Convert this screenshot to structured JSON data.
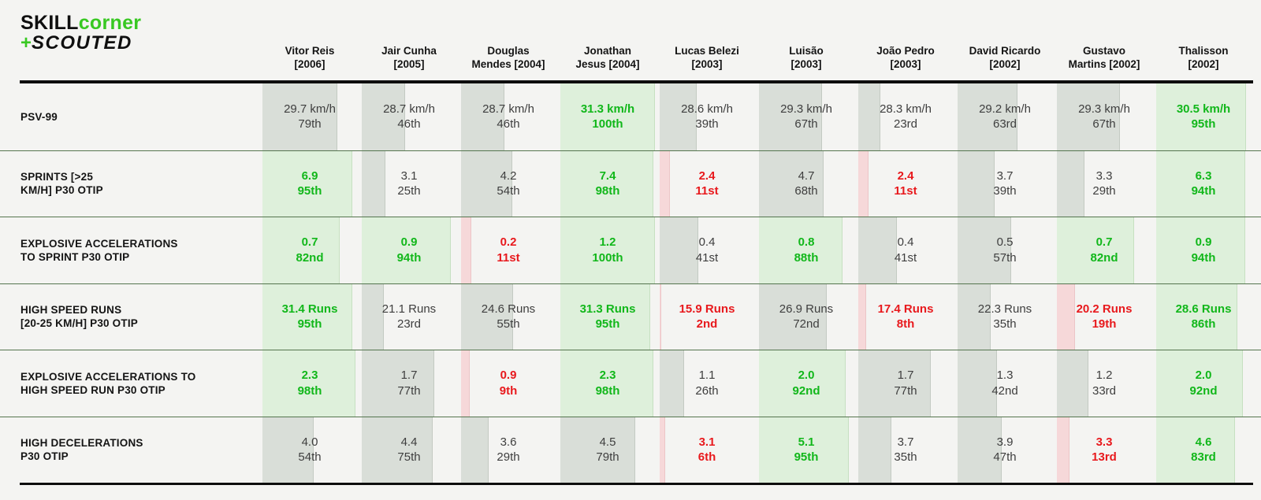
{
  "logo": {
    "skill": "SKILL",
    "corner": "corner",
    "plus": "+",
    "scouted": "SCOUTED"
  },
  "colors": {
    "background": "#f4f4f2",
    "brand_green": "#38c822",
    "rule_black": "#0d0d0d",
    "row_separator_green": "#55754f",
    "bar_mid": "#d9ded8",
    "bar_high": "#def0db",
    "bar_low": "#f6d8d9",
    "text_mid": "#3e3e3e",
    "text_high": "#11b71a",
    "text_low": "#e8191d"
  },
  "chart_data": {
    "type": "table",
    "description": "Physical performance metrics per player; each cell shows metric value, percentile rank, and a left-anchored percentile bar (green = high, grey = mid, red = low).",
    "columns": [
      {
        "label": "Vitor Reis [2006]",
        "line1": "Vitor Reis",
        "line2": "[2006]"
      },
      {
        "label": "Jair Cunha [2005]",
        "line1": "Jair Cunha",
        "line2": "[2005]"
      },
      {
        "label": "Douglas Mendes [2004]",
        "line1": "Douglas",
        "line2": "Mendes [2004]"
      },
      {
        "label": "Jonathan Jesus [2004]",
        "line1": "Jonathan",
        "line2": "Jesus [2004]"
      },
      {
        "label": "Lucas Belezi [2003]",
        "line1": "Lucas Belezi",
        "line2": "[2003]"
      },
      {
        "label": "Luisão [2003]",
        "line1": "Luisão",
        "line2": "[2003]"
      },
      {
        "label": "João Pedro [2003]",
        "line1": "João Pedro",
        "line2": "[2003]"
      },
      {
        "label": "David Ricardo [2002]",
        "line1": "David Ricardo",
        "line2": "[2002]"
      },
      {
        "label": "Gustavo Martins [2002]",
        "line1": "Gustavo",
        "line2": "Martins [2002]"
      },
      {
        "label": "Thalisson [2002]",
        "line1": "Thalisson",
        "line2": "[2002]"
      }
    ],
    "rows": [
      {
        "label": "PSV-99",
        "label_lines": [
          "PSV-99"
        ],
        "cells": [
          {
            "value": "29.7 km/h",
            "rank": "79th",
            "pct": 79,
            "level": "mid"
          },
          {
            "value": "28.7 km/h",
            "rank": "46th",
            "pct": 46,
            "level": "mid"
          },
          {
            "value": "28.7 km/h",
            "rank": "46th",
            "pct": 46,
            "level": "mid"
          },
          {
            "value": "31.3 km/h",
            "rank": "100th",
            "pct": 100,
            "level": "high"
          },
          {
            "value": "28.6 km/h",
            "rank": "39th",
            "pct": 39,
            "level": "mid"
          },
          {
            "value": "29.3 km/h",
            "rank": "67th",
            "pct": 67,
            "level": "mid"
          },
          {
            "value": "28.3 km/h",
            "rank": "23rd",
            "pct": 23,
            "level": "mid"
          },
          {
            "value": "29.2 km/h",
            "rank": "63rd",
            "pct": 63,
            "level": "mid"
          },
          {
            "value": "29.3 km/h",
            "rank": "67th",
            "pct": 67,
            "level": "mid"
          },
          {
            "value": "30.5 km/h",
            "rank": "95th",
            "pct": 95,
            "level": "high"
          }
        ]
      },
      {
        "label": "SPRINTS [>25 KM/H] P30 OTIP",
        "label_lines": [
          "SPRINTS [>25",
          "KM/H] P30 OTIP"
        ],
        "cells": [
          {
            "value": "6.9",
            "rank": "95th",
            "pct": 95,
            "level": "high"
          },
          {
            "value": "3.1",
            "rank": "25th",
            "pct": 25,
            "level": "mid"
          },
          {
            "value": "4.2",
            "rank": "54th",
            "pct": 54,
            "level": "mid"
          },
          {
            "value": "7.4",
            "rank": "98th",
            "pct": 98,
            "level": "high"
          },
          {
            "value": "2.4",
            "rank": "11st",
            "pct": 11,
            "level": "low"
          },
          {
            "value": "4.7",
            "rank": "68th",
            "pct": 68,
            "level": "mid"
          },
          {
            "value": "2.4",
            "rank": "11st",
            "pct": 11,
            "level": "low"
          },
          {
            "value": "3.7",
            "rank": "39th",
            "pct": 39,
            "level": "mid"
          },
          {
            "value": "3.3",
            "rank": "29th",
            "pct": 29,
            "level": "mid"
          },
          {
            "value": "6.3",
            "rank": "94th",
            "pct": 94,
            "level": "high"
          }
        ]
      },
      {
        "label": "EXPLOSIVE ACCELERATIONS TO SPRINT P30 OTIP",
        "label_lines": [
          "EXPLOSIVE ACCELERATIONS",
          "TO SPRINT P30 OTIP"
        ],
        "cells": [
          {
            "value": "0.7",
            "rank": "82nd",
            "pct": 82,
            "level": "high"
          },
          {
            "value": "0.9",
            "rank": "94th",
            "pct": 94,
            "level": "high"
          },
          {
            "value": "0.2",
            "rank": "11st",
            "pct": 11,
            "level": "low"
          },
          {
            "value": "1.2",
            "rank": "100th",
            "pct": 100,
            "level": "high"
          },
          {
            "value": "0.4",
            "rank": "41st",
            "pct": 41,
            "level": "mid"
          },
          {
            "value": "0.8",
            "rank": "88th",
            "pct": 88,
            "level": "high"
          },
          {
            "value": "0.4",
            "rank": "41st",
            "pct": 41,
            "level": "mid"
          },
          {
            "value": "0.5",
            "rank": "57th",
            "pct": 57,
            "level": "mid"
          },
          {
            "value": "0.7",
            "rank": "82nd",
            "pct": 82,
            "level": "high"
          },
          {
            "value": "0.9",
            "rank": "94th",
            "pct": 94,
            "level": "high"
          }
        ]
      },
      {
        "label": "HIGH SPEED RUNS [20-25 KM/H] P30 OTIP",
        "label_lines": [
          "HIGH SPEED RUNS",
          "[20-25 KM/H] P30 OTIP"
        ],
        "cells": [
          {
            "value": "31.4 Runs",
            "rank": "95th",
            "pct": 95,
            "level": "high"
          },
          {
            "value": "21.1 Runs",
            "rank": "23rd",
            "pct": 23,
            "level": "mid"
          },
          {
            "value": "24.6 Runs",
            "rank": "55th",
            "pct": 55,
            "level": "mid"
          },
          {
            "value": "31.3 Runs",
            "rank": "95th",
            "pct": 95,
            "level": "high"
          },
          {
            "value": "15.9 Runs",
            "rank": "2nd",
            "pct": 2,
            "level": "low"
          },
          {
            "value": "26.9 Runs",
            "rank": "72nd",
            "pct": 72,
            "level": "mid"
          },
          {
            "value": "17.4 Runs",
            "rank": "8th",
            "pct": 8,
            "level": "low"
          },
          {
            "value": "22.3 Runs",
            "rank": "35th",
            "pct": 35,
            "level": "mid"
          },
          {
            "value": "20.2 Runs",
            "rank": "19th",
            "pct": 19,
            "level": "low"
          },
          {
            "value": "28.6 Runs",
            "rank": "86th",
            "pct": 86,
            "level": "high"
          }
        ]
      },
      {
        "label": "EXPLOSIVE ACCELERATIONS TO HIGH SPEED RUN P30 OTIP",
        "label_lines": [
          "EXPLOSIVE ACCELERATIONS TO",
          "HIGH SPEED RUN P30 OTIP"
        ],
        "cells": [
          {
            "value": "2.3",
            "rank": "98th",
            "pct": 98,
            "level": "high"
          },
          {
            "value": "1.7",
            "rank": "77th",
            "pct": 77,
            "level": "mid"
          },
          {
            "value": "0.9",
            "rank": "9th",
            "pct": 9,
            "level": "low"
          },
          {
            "value": "2.3",
            "rank": "98th",
            "pct": 98,
            "level": "high"
          },
          {
            "value": "1.1",
            "rank": "26th",
            "pct": 26,
            "level": "mid"
          },
          {
            "value": "2.0",
            "rank": "92nd",
            "pct": 92,
            "level": "high"
          },
          {
            "value": "1.7",
            "rank": "77th",
            "pct": 77,
            "level": "mid"
          },
          {
            "value": "1.3",
            "rank": "42nd",
            "pct": 42,
            "level": "mid"
          },
          {
            "value": "1.2",
            "rank": "33rd",
            "pct": 33,
            "level": "mid"
          },
          {
            "value": "2.0",
            "rank": "92nd",
            "pct": 92,
            "level": "high"
          }
        ]
      },
      {
        "label": "HIGH DECELERATIONS P30 OTIP",
        "label_lines": [
          "HIGH DECELERATIONS",
          "P30 OTIP"
        ],
        "cells": [
          {
            "value": "4.0",
            "rank": "54th",
            "pct": 54,
            "level": "mid"
          },
          {
            "value": "4.4",
            "rank": "75th",
            "pct": 75,
            "level": "mid"
          },
          {
            "value": "3.6",
            "rank": "29th",
            "pct": 29,
            "level": "mid"
          },
          {
            "value": "4.5",
            "rank": "79th",
            "pct": 79,
            "level": "mid"
          },
          {
            "value": "3.1",
            "rank": "6th",
            "pct": 6,
            "level": "low"
          },
          {
            "value": "5.1",
            "rank": "95th",
            "pct": 95,
            "level": "high"
          },
          {
            "value": "3.7",
            "rank": "35th",
            "pct": 35,
            "level": "mid"
          },
          {
            "value": "3.9",
            "rank": "47th",
            "pct": 47,
            "level": "mid"
          },
          {
            "value": "3.3",
            "rank": "13rd",
            "pct": 13,
            "level": "low"
          },
          {
            "value": "4.6",
            "rank": "83rd",
            "pct": 83,
            "level": "high"
          }
        ]
      }
    ]
  }
}
